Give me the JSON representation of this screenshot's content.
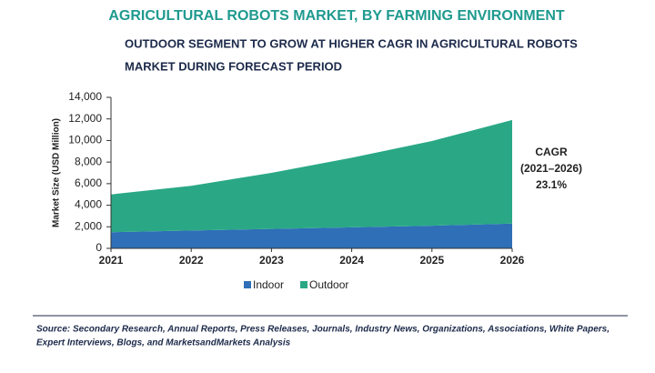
{
  "chart_data": {
    "type": "area",
    "stacked": true,
    "title": "AGRICULTURAL ROBOTS MARKET, BY FARMING ENVIRONMENT",
    "subtitle": [
      "OUTDOOR SEGMENT TO GROW AT HIGHER CAGR IN AGRICULTURAL ROBOTS",
      "MARKET DURING FORECAST PERIOD"
    ],
    "y_label": "Market Size (USD Million)",
    "categories": [
      "2021",
      "2022",
      "2023",
      "2024",
      "2025",
      "2026"
    ],
    "series": [
      {
        "name": "Indoor",
        "color": "#2e6fb7",
        "values": [
          1500,
          1650,
          1800,
          1950,
          2100,
          2300
        ]
      },
      {
        "name": "Outdoor",
        "color": "#2aa886",
        "values": [
          3500,
          4150,
          5200,
          6450,
          7850,
          9600
        ]
      }
    ],
    "ylim": [
      0,
      14000
    ],
    "yticks": [
      0,
      {
        "value": 2000,
        "label": "2,000"
      },
      {
        "value": 4000,
        "label": "4,000"
      },
      {
        "value": 6000,
        "label": "6,000"
      },
      {
        "value": 8000,
        "label": "8,000"
      },
      {
        "value": 10000,
        "label": "10,000"
      },
      {
        "value": 12000,
        "label": "12,000"
      },
      {
        "value": 14000,
        "label": "14,000"
      }
    ],
    "grid": false,
    "legend": "bottom",
    "annotations": [
      "CAGR",
      "(2021–2026)",
      "23.1%"
    ],
    "source": [
      "Source: Secondary Research, Annual Reports, Press Releases, Journals, Industry News, Organizations, Associations, White Papers,",
      "Expert Interviews, Blogs, and MarketsandMarkets Analysis"
    ]
  }
}
